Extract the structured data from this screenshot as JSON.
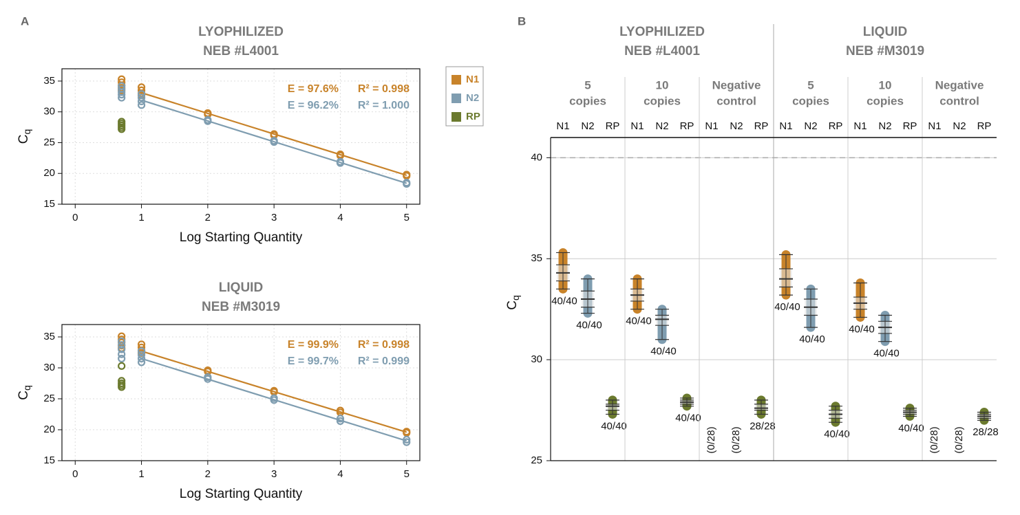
{
  "panel_labels": [
    "A",
    "B"
  ],
  "chart_data": [
    {
      "type": "scatter",
      "title": "LYOPHILIZED",
      "subtitle": "NEB #L4001",
      "xlabel": "Log Starting Quantity",
      "ylabel": {
        "text": "C",
        "subscript": "q"
      },
      "xlim": [
        -0.2,
        5.2
      ],
      "xticks": [
        0,
        1,
        2,
        3,
        4,
        5
      ],
      "ylim": [
        15,
        37
      ],
      "yticks": [
        15,
        20,
        25,
        30,
        35
      ],
      "grid": true,
      "series": [
        {
          "name": "N1",
          "color": "#c8832a",
          "efficiency": "E = 97.6%",
          "r2": "R² = 0.998",
          "x": [
            0.7,
            0.7,
            0.7,
            0.7,
            0.7,
            1,
            1,
            1,
            1,
            2,
            2,
            3,
            3,
            4,
            4,
            5,
            5
          ],
          "values": [
            35.3,
            34.8,
            34.3,
            33.9,
            33.5,
            34.0,
            33.5,
            33.0,
            32.7,
            29.8,
            29.6,
            26.4,
            26.2,
            23.1,
            22.9,
            19.8,
            19.6
          ],
          "fit_x": [
            1,
            5
          ],
          "fit_y": [
            33.1,
            19.7
          ]
        },
        {
          "name": "N2",
          "color": "#7f9db0",
          "efficiency": "E = 96.2%",
          "r2": "R² = 1.000",
          "x": [
            0.7,
            0.7,
            0.7,
            0.7,
            0.7,
            1,
            1,
            1,
            1,
            2,
            2,
            3,
            3,
            4,
            4,
            5,
            5
          ],
          "values": [
            34.2,
            33.7,
            33.2,
            32.8,
            32.3,
            32.9,
            32.3,
            31.7,
            31.1,
            28.7,
            28.5,
            25.3,
            25.1,
            21.9,
            21.7,
            18.5,
            18.3
          ],
          "fit_x": [
            1,
            5
          ],
          "fit_y": [
            31.9,
            18.4
          ]
        },
        {
          "name": "RP",
          "color": "#6b7a2e",
          "x": [
            0.7,
            0.7,
            0.7,
            0.7,
            0.7
          ],
          "values": [
            28.4,
            28.1,
            27.8,
            27.5,
            27.2
          ]
        }
      ]
    },
    {
      "type": "scatter",
      "title": "LIQUID",
      "subtitle": "NEB #M3019",
      "xlabel": "Log Starting Quantity",
      "ylabel": {
        "text": "C",
        "subscript": "q"
      },
      "xlim": [
        -0.2,
        5.2
      ],
      "xticks": [
        0,
        1,
        2,
        3,
        4,
        5
      ],
      "ylim": [
        15,
        37
      ],
      "yticks": [
        15,
        20,
        25,
        30,
        35
      ],
      "grid": true,
      "series": [
        {
          "name": "N1",
          "color": "#c8832a",
          "efficiency": "E = 99.9%",
          "r2": "R² = 0.998",
          "x": [
            0.7,
            0.7,
            0.7,
            0.7,
            0.7,
            1,
            1,
            1,
            1,
            2,
            2,
            3,
            3,
            4,
            4,
            5,
            5
          ],
          "values": [
            35.1,
            34.6,
            34.1,
            33.6,
            33.2,
            33.8,
            33.3,
            32.8,
            32.4,
            29.6,
            29.4,
            26.3,
            26.1,
            23.1,
            22.8,
            19.7,
            19.5
          ],
          "fit_x": [
            1,
            5
          ],
          "fit_y": [
            32.7,
            19.6
          ]
        },
        {
          "name": "N2",
          "color": "#7f9db0",
          "efficiency": "E = 99.7%",
          "r2": "R² = 0.999",
          "x": [
            0.7,
            0.7,
            0.7,
            0.7,
            0.7,
            1,
            1,
            1,
            1,
            2,
            2,
            3,
            3,
            4,
            4,
            5,
            5
          ],
          "values": [
            34.3,
            33.7,
            33.0,
            32.2,
            31.5,
            32.7,
            32.1,
            31.5,
            30.9,
            28.5,
            28.2,
            25.1,
            24.8,
            21.8,
            21.4,
            18.4,
            18.0
          ],
          "fit_x": [
            1,
            5
          ],
          "fit_y": [
            31.5,
            18.2
          ]
        },
        {
          "name": "RP",
          "color": "#6b7a2e",
          "x": [
            0.7,
            0.7,
            0.7,
            0.7,
            0.7
          ],
          "values": [
            30.3,
            27.9,
            27.5,
            27.2,
            26.9
          ]
        }
      ]
    },
    {
      "type": "strip",
      "ylabel": {
        "text": "C",
        "subscript": "q"
      },
      "ylim": [
        25,
        41
      ],
      "yticks": [
        25,
        30,
        35,
        40
      ],
      "threshold": 40,
      "grid": true,
      "colors": {
        "N1": "#c8832a",
        "N2": "#7f9db0",
        "RP": "#6b7a2e"
      },
      "groups": [
        {
          "title": "LYOPHILIZED",
          "subtitle": "NEB #L4001",
          "subgroups": [
            {
              "label": [
                "5",
                "copies"
              ],
              "columns": [
                {
                  "name": "N1",
                  "min": 33.5,
                  "q1": 33.9,
                  "median": 34.3,
                  "q3": 34.7,
                  "max": 35.3,
                  "count": "40/40"
                },
                {
                  "name": "N2",
                  "min": 32.3,
                  "q1": 32.6,
                  "median": 33.0,
                  "q3": 33.4,
                  "max": 34.0,
                  "count": "40/40"
                },
                {
                  "name": "RP",
                  "min": 27.3,
                  "q1": 27.5,
                  "median": 27.7,
                  "q3": 27.8,
                  "max": 28.0,
                  "count": "40/40"
                }
              ]
            },
            {
              "label": [
                "10",
                "copies"
              ],
              "columns": [
                {
                  "name": "N1",
                  "min": 32.5,
                  "q1": 32.9,
                  "median": 33.2,
                  "q3": 33.5,
                  "max": 34.0,
                  "count": "40/40"
                },
                {
                  "name": "N2",
                  "min": 31.0,
                  "q1": 31.7,
                  "median": 32.0,
                  "q3": 32.2,
                  "max": 32.5,
                  "count": "40/40"
                },
                {
                  "name": "RP",
                  "min": 27.7,
                  "q1": 27.8,
                  "median": 27.9,
                  "q3": 28.0,
                  "max": 28.1,
                  "count": "40/40"
                }
              ]
            },
            {
              "label": [
                "Negative",
                "control"
              ],
              "columns": [
                {
                  "name": "N1",
                  "min": null,
                  "q1": null,
                  "median": null,
                  "q3": null,
                  "max": null,
                  "count": "(0/28)"
                },
                {
                  "name": "N2",
                  "min": null,
                  "q1": null,
                  "median": null,
                  "q3": null,
                  "max": null,
                  "count": "(0/28)"
                },
                {
                  "name": "RP",
                  "min": 27.3,
                  "q1": 27.5,
                  "median": 27.6,
                  "q3": 27.8,
                  "max": 28.0,
                  "count": "28/28"
                }
              ]
            }
          ]
        },
        {
          "title": "LIQUID",
          "subtitle": "NEB #M3019",
          "subgroups": [
            {
              "label": [
                "5",
                "copies"
              ],
              "columns": [
                {
                  "name": "N1",
                  "min": 33.2,
                  "q1": 33.6,
                  "median": 34.0,
                  "q3": 34.5,
                  "max": 35.2,
                  "count": "40/40"
                },
                {
                  "name": "N2",
                  "min": 31.6,
                  "q1": 32.2,
                  "median": 32.6,
                  "q3": 33.0,
                  "max": 33.5,
                  "count": "40/40"
                },
                {
                  "name": "RP",
                  "min": 26.9,
                  "q1": 27.1,
                  "median": 27.3,
                  "q3": 27.5,
                  "max": 27.7,
                  "count": "40/40"
                }
              ]
            },
            {
              "label": [
                "10",
                "copies"
              ],
              "columns": [
                {
                  "name": "N1",
                  "min": 32.1,
                  "q1": 32.5,
                  "median": 32.8,
                  "q3": 33.1,
                  "max": 33.8,
                  "count": "40/40"
                },
                {
                  "name": "N2",
                  "min": 30.9,
                  "q1": 31.3,
                  "median": 31.6,
                  "q3": 31.9,
                  "max": 32.2,
                  "count": "40/40"
                },
                {
                  "name": "RP",
                  "min": 27.2,
                  "q1": 27.3,
                  "median": 27.4,
                  "q3": 27.5,
                  "max": 27.6,
                  "count": "40/40"
                }
              ]
            },
            {
              "label": [
                "Negative",
                "control"
              ],
              "columns": [
                {
                  "name": "N1",
                  "min": null,
                  "q1": null,
                  "median": null,
                  "q3": null,
                  "max": null,
                  "count": "(0/28)"
                },
                {
                  "name": "N2",
                  "min": null,
                  "q1": null,
                  "median": null,
                  "q3": null,
                  "max": null,
                  "count": "(0/28)"
                },
                {
                  "name": "RP",
                  "min": 27.0,
                  "q1": 27.1,
                  "median": 27.2,
                  "q3": 27.3,
                  "max": 27.4,
                  "count": "28/28"
                }
              ]
            }
          ]
        }
      ]
    }
  ]
}
